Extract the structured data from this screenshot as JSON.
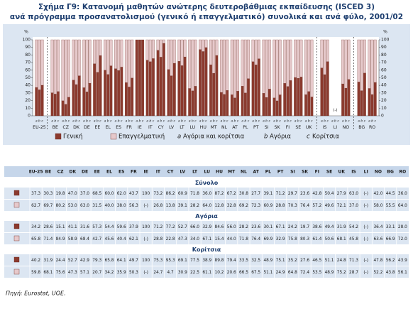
{
  "chart_data": {
    "type": "bar",
    "stacked": true,
    "title": [
      "Σχήμα Γ9: Κατανομή μαθητών ανώτερης δευτεροβάθμιας εκπαίδευσης (ISCED 3)",
      "ανά πρόγραμμα προσανατολισμού (γενικό ή επαγγελματικό) συνολικά και ανά φύλο, 2001/02"
    ],
    "y_label": "%",
    "ylim": [
      0,
      100
    ],
    "yticks": [
      0,
      10,
      20,
      30,
      40,
      50,
      60,
      70,
      80,
      90,
      100
    ],
    "grid": false,
    "categories": [
      "EU-25",
      "BE",
      "CZ",
      "DK",
      "DE",
      "EE",
      "EL",
      "ES",
      "FR",
      "IE",
      "IT",
      "CY",
      "LV",
      "LT",
      "LU",
      "HU",
      "MT",
      "NL",
      "AT",
      "PL",
      "PT",
      "SI",
      "SK",
      "FI",
      "SE",
      "UK",
      "IS",
      "LI",
      "NO",
      "BG",
      "RO"
    ],
    "series": [
      {
        "name": "Γενική",
        "color": "#8b3a2e"
      },
      {
        "name": "Επαγγελματική",
        "color": "#e6c9cb"
      }
    ],
    "groups": [
      {
        "letter": "a",
        "name": "Αγόρια και κορίτσια",
        "section": "Σύνολο",
        "values": [
          [
            37.3,
            30.3,
            19.8,
            47.0,
            37.0,
            68.5,
            60.0,
            62.0,
            43.7,
            100,
            73.2,
            86.2,
            60.9,
            71.8,
            36.0,
            87.2,
            67.2,
            30.8,
            27.7,
            39.1,
            71.2,
            29.7,
            23.6,
            42.8,
            50.4,
            27.9,
            63.0,
            null,
            42.0,
            44.5,
            36.0
          ],
          [
            62.7,
            69.7,
            80.2,
            53.0,
            63.0,
            31.5,
            40.0,
            38.0,
            56.3,
            null,
            26.8,
            13.8,
            39.1,
            28.2,
            64.0,
            12.8,
            32.8,
            69.2,
            72.3,
            60.9,
            28.8,
            70.3,
            76.4,
            57.2,
            49.6,
            72.1,
            37.0,
            null,
            58.0,
            55.5,
            64.0
          ]
        ],
        "value_labels": [
          [
            "37.3",
            "30.3",
            "19.8",
            "47.0",
            "37.0",
            "68.5",
            "60.0",
            "62.0",
            "43.7",
            "100",
            "73.2",
            "86.2",
            "60.9",
            "71.8",
            "36.0",
            "87.2",
            "67.2",
            "30.8",
            "27.7",
            "39.1",
            "71.2",
            "29.7",
            "23.6",
            "42.8",
            "50.4",
            "27.9",
            "63.0",
            "(-)",
            "42.0",
            "44.5",
            "36.0"
          ],
          [
            "62.7",
            "69.7",
            "80.2",
            "53.0",
            "63.0",
            "31.5",
            "40.0",
            "38.0",
            "56.3",
            "(-)",
            "26.8",
            "13.8",
            "39.1",
            "28.2",
            "64.0",
            "12.8",
            "32.8",
            "69.2",
            "72.3",
            "60.9",
            "28.8",
            "70.3",
            "76.4",
            "57.2",
            "49.6",
            "72.1",
            "37.0",
            "(-)",
            "58.0",
            "55.5",
            "64.0"
          ]
        ]
      },
      {
        "letter": "b",
        "name": "Αγόρια",
        "section": "Αγόρια",
        "values": [
          [
            34.2,
            28.6,
            15.1,
            41.1,
            31.6,
            57.3,
            54.4,
            59.6,
            37.9,
            100,
            71.2,
            77.2,
            52.7,
            66.0,
            32.9,
            84.6,
            56.0,
            28.2,
            23.6,
            30.1,
            67.1,
            24.2,
            19.7,
            38.6,
            49.4,
            31.9,
            54.2,
            null,
            36.4,
            33.1,
            28.0
          ],
          [
            65.8,
            71.4,
            84.9,
            58.9,
            68.4,
            42.7,
            45.6,
            40.4,
            62.1,
            null,
            28.8,
            22.8,
            47.3,
            34.0,
            67.1,
            15.4,
            44.0,
            71.8,
            76.4,
            69.9,
            32.9,
            75.8,
            80.3,
            61.4,
            50.6,
            68.1,
            45.8,
            null,
            63.6,
            66.9,
            72.0
          ]
        ],
        "value_labels": [
          [
            "34.2",
            "28.6",
            "15.1",
            "41.1",
            "31.6",
            "57.3",
            "54.4",
            "59.6",
            "37.9",
            "100",
            "71.2",
            "77.2",
            "52.7",
            "66.0",
            "32.9",
            "84.6",
            "56.0",
            "28.2",
            "23.6",
            "30.1",
            "67.1",
            "24.2",
            "19.7",
            "38.6",
            "49.4",
            "31.9",
            "54.2",
            "(-)",
            "36.4",
            "33.1",
            "28.0"
          ],
          [
            "65.8",
            "71.4",
            "84.9",
            "58.9",
            "68.4",
            "42.7",
            "45.6",
            "40.4",
            "62.1",
            "(-)",
            "28.8",
            "22.8",
            "47.3",
            "34.0",
            "67.1",
            "15.4",
            "44.0",
            "71.8",
            "76.4",
            "69.9",
            "32.9",
            "75.8",
            "80.3",
            "61.4",
            "50.6",
            "68.1",
            "45.8",
            "(-)",
            "63.6",
            "66.9",
            "72.0"
          ]
        ]
      },
      {
        "letter": "c",
        "name": "Κορίτσια",
        "section": "Κορίτσια",
        "values": [
          [
            40.2,
            31.9,
            24.4,
            52.7,
            42.9,
            79.3,
            65.8,
            64.1,
            49.7,
            100,
            75.3,
            95.3,
            69.1,
            77.5,
            38.9,
            89.8,
            79.4,
            33.5,
            32.5,
            48.9,
            75.1,
            35.2,
            27.6,
            46.5,
            51.1,
            24.8,
            71.3,
            null,
            47.8,
            56.2,
            43.9
          ],
          [
            59.8,
            68.1,
            75.6,
            47.3,
            57.1,
            20.7,
            34.2,
            35.9,
            50.3,
            null,
            24.7,
            4.7,
            30.9,
            22.5,
            61.1,
            10.2,
            20.6,
            66.5,
            67.5,
            51.1,
            24.9,
            64.8,
            72.4,
            53.5,
            48.9,
            75.2,
            28.7,
            null,
            52.2,
            43.8,
            56.1
          ]
        ],
        "value_labels": [
          [
            "40.2",
            "31.9",
            "24.4",
            "52.7",
            "42.9",
            "79.3",
            "65.8",
            "64.1",
            "49.7",
            "100",
            "75.3",
            "95.3",
            "69.1",
            "77.5",
            "38.9",
            "89.8",
            "79.4",
            "33.5",
            "32.5",
            "48.9",
            "75.1",
            "35.2",
            "27.6",
            "46.5",
            "51.1",
            "24.8",
            "71.3",
            "(-)",
            "47.8",
            "56.2",
            "43.9"
          ],
          [
            "59.8",
            "68.1",
            "75.6",
            "47.3",
            "57.1",
            "20.7",
            "34.2",
            "35.9",
            "50.3",
            "(-)",
            "24.7",
            "4.7",
            "30.9",
            "22.5",
            "61.1",
            "10.2",
            "20.6",
            "66.5",
            "67.5",
            "51.1",
            "24.9",
            "64.8",
            "72.4",
            "53.5",
            "48.9",
            "75.2",
            "28.7",
            "(-)",
            "52.2",
            "43.8",
            "56.1"
          ]
        ]
      }
    ],
    "source": "Πηγή: Eurostat, UOE."
  }
}
